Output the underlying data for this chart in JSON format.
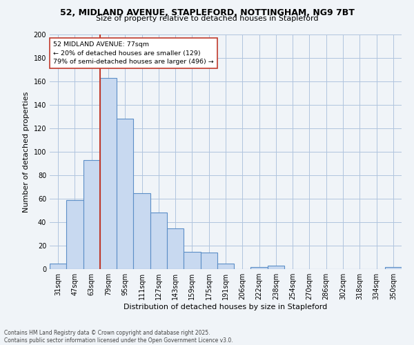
{
  "title_line1": "52, MIDLAND AVENUE, STAPLEFORD, NOTTINGHAM, NG9 7BT",
  "title_line2": "Size of property relative to detached houses in Stapleford",
  "xlabel": "Distribution of detached houses by size in Stapleford",
  "ylabel": "Number of detached properties",
  "categories": [
    "31sqm",
    "47sqm",
    "63sqm",
    "79sqm",
    "95sqm",
    "111sqm",
    "127sqm",
    "143sqm",
    "159sqm",
    "175sqm",
    "191sqm",
    "206sqm",
    "222sqm",
    "238sqm",
    "254sqm",
    "270sqm",
    "286sqm",
    "302sqm",
    "318sqm",
    "334sqm",
    "350sqm"
  ],
  "values": [
    5,
    59,
    93,
    163,
    128,
    65,
    48,
    35,
    15,
    14,
    5,
    0,
    2,
    3,
    0,
    0,
    0,
    0,
    0,
    0,
    2
  ],
  "bar_color": "#c8d9f0",
  "bar_edge_color": "#5b8ec7",
  "vline_color": "#c0392b",
  "annotation_text": "52 MIDLAND AVENUE: 77sqm\n← 20% of detached houses are smaller (129)\n79% of semi-detached houses are larger (496) →",
  "annotation_box_color": "#ffffff",
  "annotation_box_edge_color": "#c0392b",
  "ylim": [
    0,
    200
  ],
  "yticks": [
    0,
    20,
    40,
    60,
    80,
    100,
    120,
    140,
    160,
    180,
    200
  ],
  "grid_color": "#b0c4de",
  "footer_text": "Contains HM Land Registry data © Crown copyright and database right 2025.\nContains public sector information licensed under the Open Government Licence v3.0.",
  "bg_color": "#f0f4f8",
  "title_fontsize": 9,
  "subtitle_fontsize": 8,
  "tick_fontsize": 7,
  "ylabel_fontsize": 8,
  "xlabel_fontsize": 8,
  "footer_fontsize": 5.5
}
